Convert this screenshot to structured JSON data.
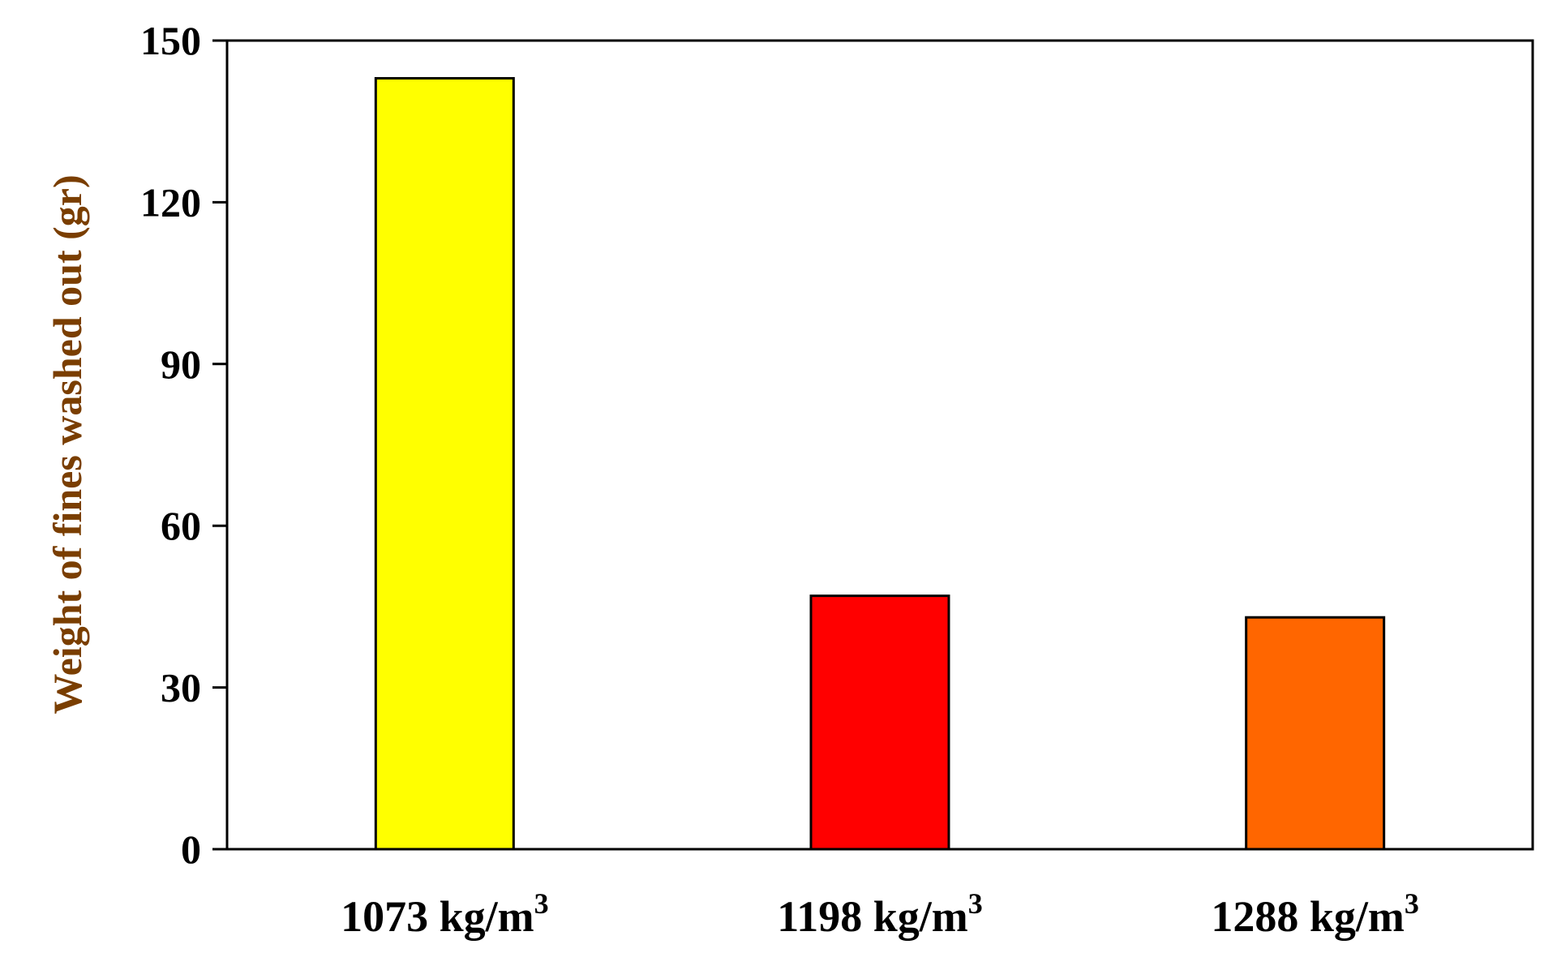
{
  "chart_data": {
    "type": "bar",
    "title": "",
    "xlabel": "",
    "ylabel": "Weight of fines washed out (gr)",
    "ylim": [
      0,
      150
    ],
    "yticks": [
      "0",
      "30",
      "60",
      "90",
      "120",
      "150"
    ],
    "categories": [
      {
        "main": "1073 kg/m",
        "sup": "3"
      },
      {
        "main": "1198 kg/m",
        "sup": "3"
      },
      {
        "main": "1288 kg/m",
        "sup": "3"
      }
    ],
    "values": [
      143,
      47,
      43
    ],
    "bar_colors": [
      "#FFFF00",
      "#FF0000",
      "#FF6600"
    ],
    "ylabel_color": "#7A3E00",
    "grid": false,
    "legend": "none"
  }
}
